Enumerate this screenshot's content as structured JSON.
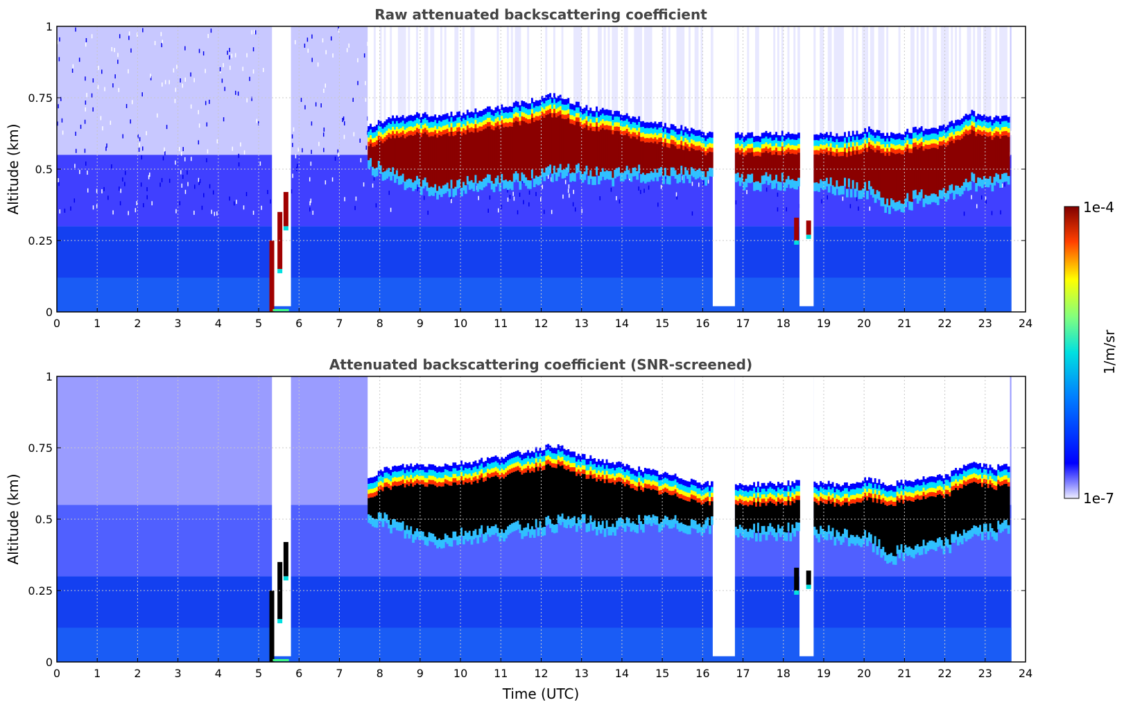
{
  "chart_data": [
    {
      "type": "heatmap",
      "title": "Raw attenuated backscattering coefficient",
      "xlabel": "",
      "ylabel": "Altitude (km)",
      "xlim": [
        0,
        24
      ],
      "ylim": [
        0,
        1
      ],
      "xticks": [
        "0",
        "1",
        "2",
        "3",
        "4",
        "5",
        "6",
        "7",
        "8",
        "9",
        "10",
        "11",
        "12",
        "13",
        "14",
        "15",
        "16",
        "17",
        "18",
        "19",
        "20",
        "21",
        "22",
        "23",
        "24"
      ],
      "yticks": [
        "0",
        "0.25",
        "0.5",
        "0.75",
        "1"
      ],
      "grid": true,
      "data_end_time": 23.65,
      "screened": false,
      "cloud_layer": [
        {
          "t": 7.7,
          "base": 0.53,
          "top": 0.63
        },
        {
          "t": 8.2,
          "base": 0.5,
          "top": 0.66
        },
        {
          "t": 8.8,
          "base": 0.46,
          "top": 0.67
        },
        {
          "t": 9.5,
          "base": 0.44,
          "top": 0.67
        },
        {
          "t": 10.2,
          "base": 0.46,
          "top": 0.68
        },
        {
          "t": 11.0,
          "base": 0.47,
          "top": 0.7
        },
        {
          "t": 11.7,
          "base": 0.48,
          "top": 0.72
        },
        {
          "t": 12.3,
          "base": 0.5,
          "top": 0.74
        },
        {
          "t": 13.0,
          "base": 0.5,
          "top": 0.7
        },
        {
          "t": 13.7,
          "base": 0.48,
          "top": 0.68
        },
        {
          "t": 14.3,
          "base": 0.5,
          "top": 0.66
        },
        {
          "t": 16.3,
          "base": 0.49,
          "top": 0.6
        },
        {
          "t": 16.7,
          "base": 0.47,
          "top": 0.6
        },
        {
          "t": 18.8,
          "base": 0.47,
          "top": 0.61
        },
        {
          "t": 19.5,
          "base": 0.45,
          "top": 0.6
        },
        {
          "t": 20.1,
          "base": 0.44,
          "top": 0.62
        },
        {
          "t": 20.6,
          "base": 0.38,
          "top": 0.6
        },
        {
          "t": 21.3,
          "base": 0.41,
          "top": 0.62
        },
        {
          "t": 22.0,
          "base": 0.42,
          "top": 0.63
        },
        {
          "t": 22.6,
          "base": 0.47,
          "top": 0.68
        },
        {
          "t": 23.2,
          "base": 0.47,
          "top": 0.66
        },
        {
          "t": 23.6,
          "base": 0.49,
          "top": 0.67
        }
      ],
      "low_cloud": [
        {
          "t": 5.3,
          "base": 0.0,
          "top": 0.25
        },
        {
          "t": 5.5,
          "base": 0.15,
          "top": 0.35
        },
        {
          "t": 5.65,
          "base": 0.3,
          "top": 0.42
        },
        {
          "t": 18.3,
          "base": 0.25,
          "top": 0.33
        },
        {
          "t": 18.6,
          "base": 0.27,
          "top": 0.32
        }
      ],
      "gaps": [
        [
          5.33,
          5.8
        ],
        [
          16.25,
          16.8
        ],
        [
          18.4,
          18.75
        ]
      ]
    },
    {
      "type": "heatmap",
      "title": "Attenuated backscattering coefficient (SNR-screened)",
      "xlabel": "Time (UTC)",
      "ylabel": "Altitude (km)",
      "xlim": [
        0,
        24
      ],
      "ylim": [
        0,
        1
      ],
      "xticks": [
        "0",
        "1",
        "2",
        "3",
        "4",
        "5",
        "6",
        "7",
        "8",
        "9",
        "10",
        "11",
        "12",
        "13",
        "14",
        "15",
        "16",
        "17",
        "18",
        "19",
        "20",
        "21",
        "22",
        "23",
        "24"
      ],
      "yticks": [
        "0",
        "0.25",
        "0.5",
        "0.75",
        "1"
      ],
      "grid": true,
      "data_end_time": 23.65,
      "screened": true
    }
  ],
  "colorbar": {
    "label": "1/m/sr",
    "max_label": "1e-4",
    "min_label": "1e-7",
    "scale": "log",
    "range": [
      1e-07,
      0.0001
    ],
    "colormap": "jet",
    "lowest_color": "#eeeeff",
    "saturated_color": "#000000"
  }
}
